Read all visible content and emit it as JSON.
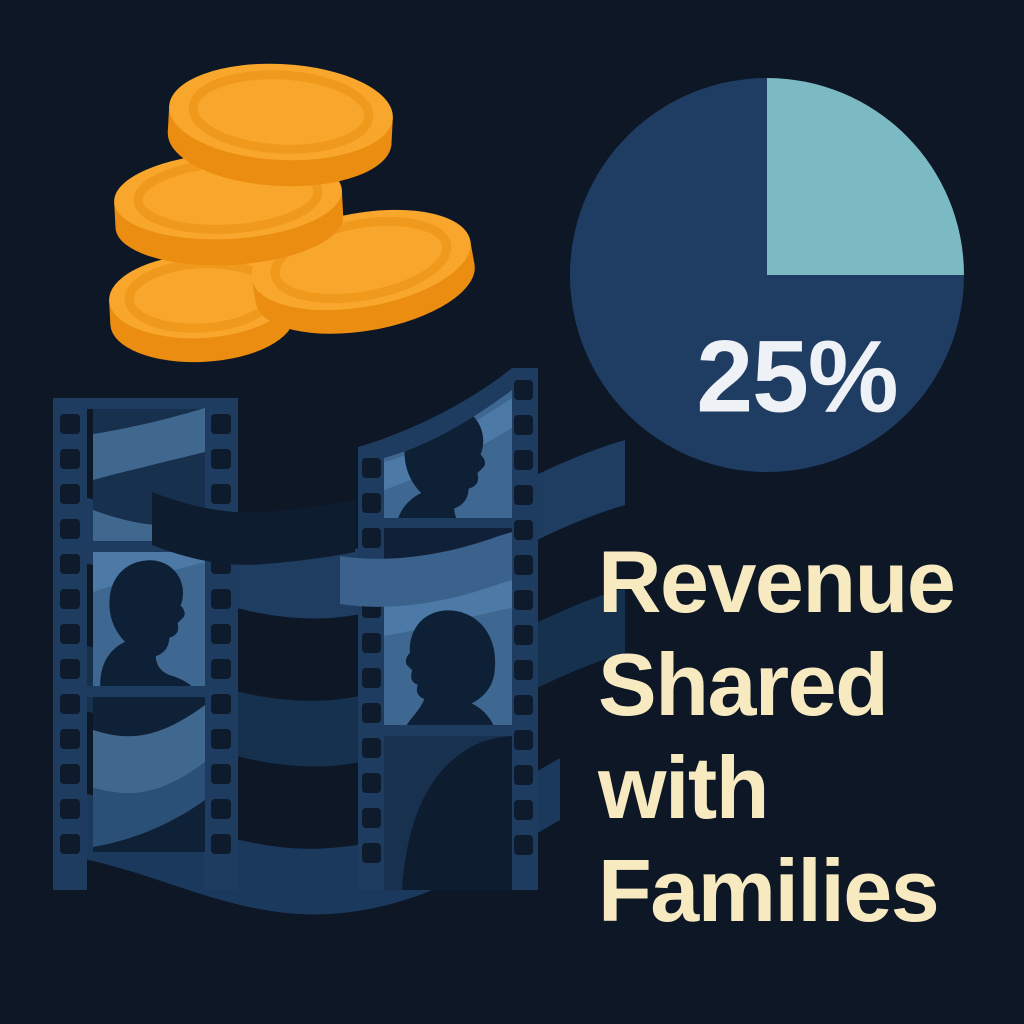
{
  "headline": {
    "text": "Revenue Shared with Families",
    "lines": [
      "Revenue",
      "Shared",
      "with",
      "Families"
    ]
  },
  "chart_data": {
    "type": "pie",
    "title": "Revenue Shared with Families",
    "label": "25%",
    "segments": [
      {
        "label": "25%",
        "value": 25,
        "color": "#7CBAC3"
      },
      {
        "label": "",
        "value": 75,
        "color": "#1F3D62"
      }
    ],
    "start_angle_deg": 0,
    "direction": "clockwise",
    "legend": "none"
  },
  "illustrations": {
    "coin_stack": {
      "name": "coin-stack-icon",
      "coin_count": 4
    },
    "film_strips": {
      "name": "film-strip-icon",
      "strip_count": 2,
      "silhouette_count": 3
    }
  },
  "colors": {
    "bg": "#0D1726",
    "rail": "#1E3C5F",
    "hole": "#0D1B2C",
    "frame": "#3E6792",
    "frame_hi": "#4C79A5",
    "frame1_base": "#16304D",
    "band_light": "#40688F",
    "band_mid": "#2B5078",
    "lower_base": "#0F2137",
    "sil": "#0E2036",
    "w1": "#1E3D60",
    "w2": "#16314E",
    "w3": "#1B395C",
    "gap_dark": "#102039",
    "cross_dark": "#0E1C30",
    "cross_light": "#3A628D",
    "bottom_base": "#17314F",
    "coin_face": "#F8A72C",
    "coin_side": "#EB8D11",
    "coin_ring": "#EF9A1D",
    "pie_rest": "#1F3D62",
    "pie_slice": "#7CBAC3",
    "pie_label": "#EEF1F5",
    "headline": "#F8EAC0"
  }
}
